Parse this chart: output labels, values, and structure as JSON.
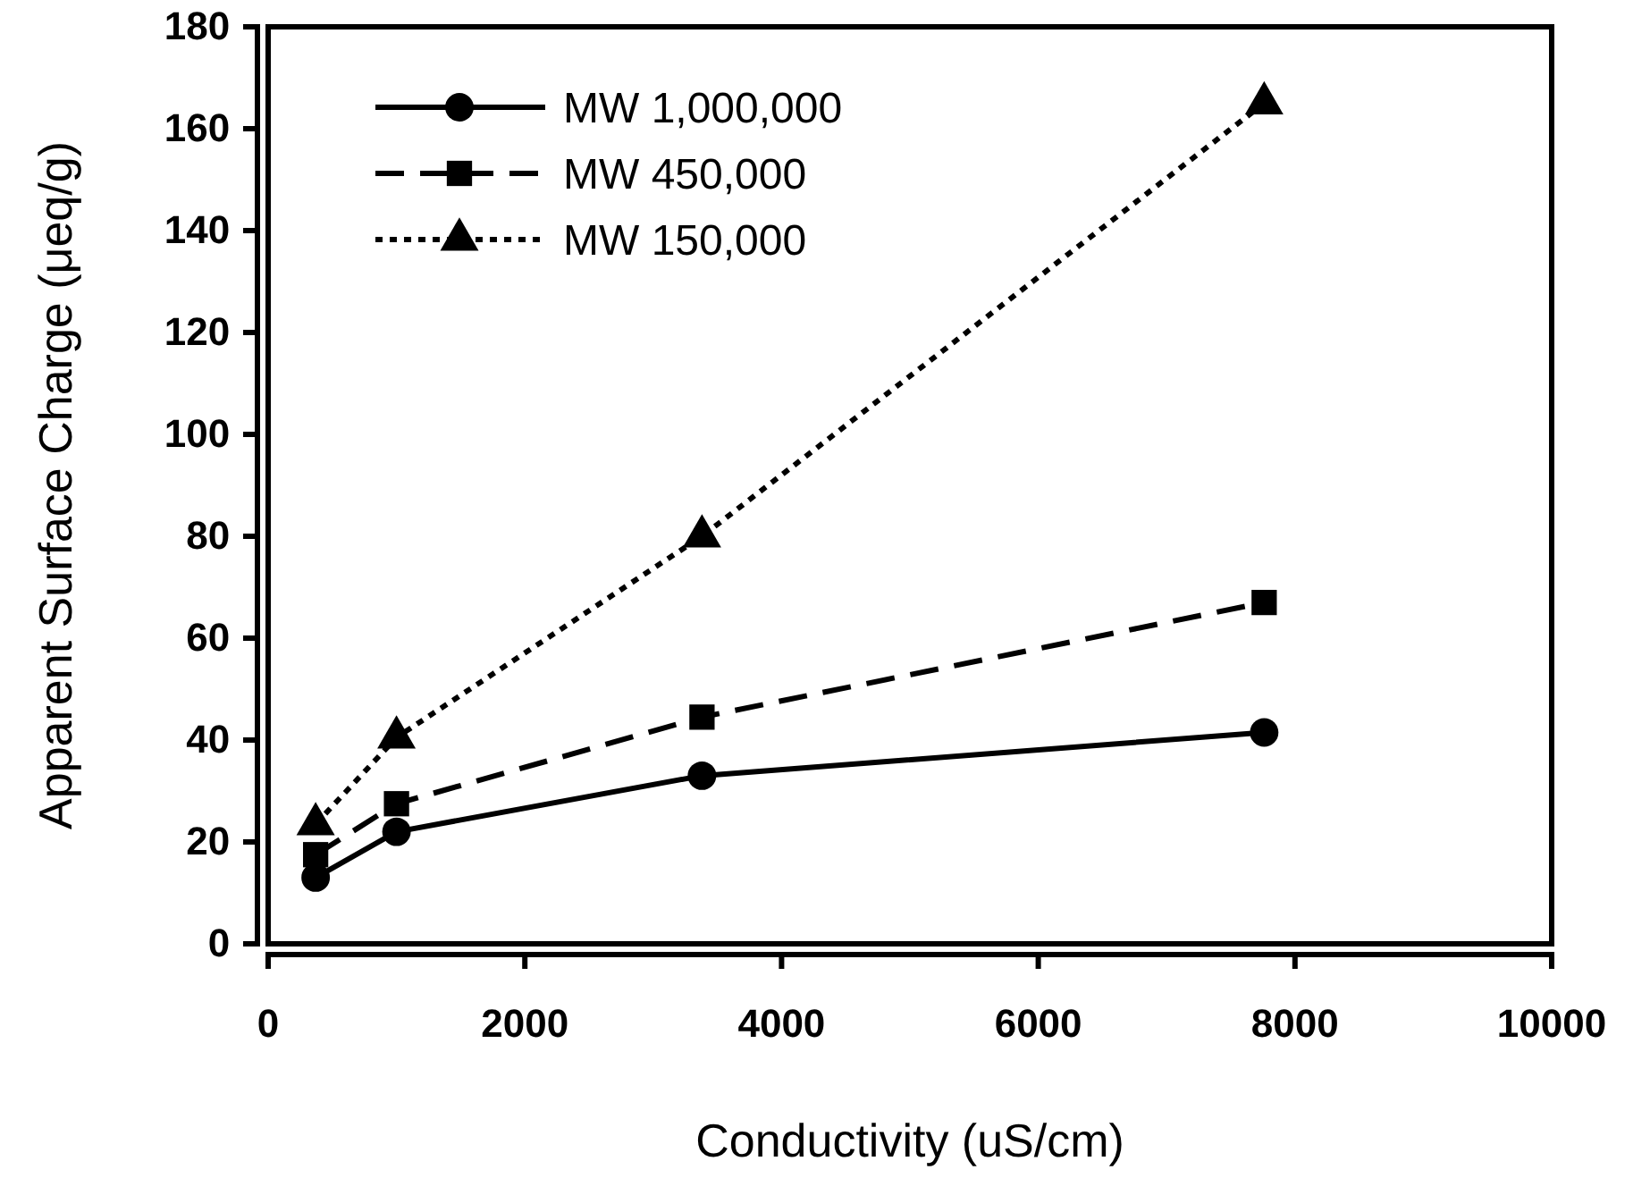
{
  "chart_data": {
    "type": "line",
    "xlabel": "Conductivity (uS/cm)",
    "ylabel": "Apparent Surface Charge (μeq/g)",
    "xlim": [
      0,
      10000
    ],
    "xticks": [
      0,
      2000,
      4000,
      6000,
      8000,
      10000
    ],
    "ylim": [
      0,
      180
    ],
    "yticks": [
      0,
      20,
      40,
      60,
      80,
      100,
      120,
      140,
      160,
      180
    ],
    "grid": false,
    "legend": "top left",
    "series": [
      {
        "name": "MW 1,000,000",
        "color": "#000000",
        "marker": "circle",
        "line_style": "solid",
        "x": [
          370,
          1000,
          3380,
          7760
        ],
        "values": [
          13,
          22,
          33,
          41.5
        ]
      },
      {
        "name": "MW 450,000",
        "color": "#000000",
        "marker": "square",
        "line_style": "dashed",
        "x": [
          370,
          1000,
          3380,
          7760
        ],
        "values": [
          17.5,
          27.5,
          44.5,
          67
        ]
      },
      {
        "name": "MW 150,000",
        "color": "#000000",
        "marker": "triangle",
        "line_style": "dotted",
        "x": [
          370,
          1000,
          3380,
          7760
        ],
        "values": [
          23.5,
          40.5,
          80,
          165
        ]
      }
    ]
  }
}
